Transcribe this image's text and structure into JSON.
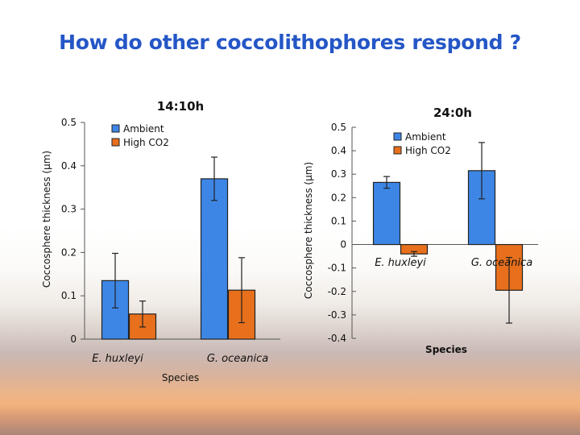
{
  "slide": {
    "title": "How do other coccolithophores respond ?"
  },
  "colors": {
    "ambient": "#3d86e6",
    "high_co2": "#e8701c",
    "title": "#2456c6"
  },
  "chart_data": [
    {
      "type": "bar",
      "title": "14:10h",
      "xlabel": "Species",
      "ylabel": "Coccosphere thickness (μm)",
      "categories": [
        "E. huxleyi",
        "G. oceanica"
      ],
      "ylim": [
        0,
        0.5
      ],
      "yticks": [
        0,
        0.1,
        0.2,
        0.3,
        0.4,
        0.5
      ],
      "legend": [
        "Ambient",
        "High CO2"
      ],
      "series": [
        {
          "name": "Ambient",
          "values": [
            0.135,
            0.37
          ],
          "errors": [
            0.063,
            0.05
          ]
        },
        {
          "name": "High CO2",
          "values": [
            0.058,
            0.113
          ],
          "errors": [
            0.03,
            0.075
          ]
        }
      ]
    },
    {
      "type": "bar",
      "title": "24:0h",
      "xlabel": "Species",
      "ylabel": "Coccosphere thickness (μm)",
      "categories": [
        "E. huxleyi",
        "G. oceanica"
      ],
      "ylim": [
        -0.4,
        0.5
      ],
      "yticks": [
        -0.4,
        -0.3,
        -0.2,
        -0.1,
        0,
        0.1,
        0.2,
        0.3,
        0.4,
        0.5
      ],
      "legend": [
        "Ambient",
        "High CO2"
      ],
      "series": [
        {
          "name": "Ambient",
          "values": [
            0.265,
            0.315
          ],
          "errors": [
            0.025,
            0.12
          ]
        },
        {
          "name": "High CO2",
          "values": [
            -0.04,
            -0.195
          ],
          "errors": [
            0.01,
            0.14
          ]
        }
      ]
    }
  ]
}
